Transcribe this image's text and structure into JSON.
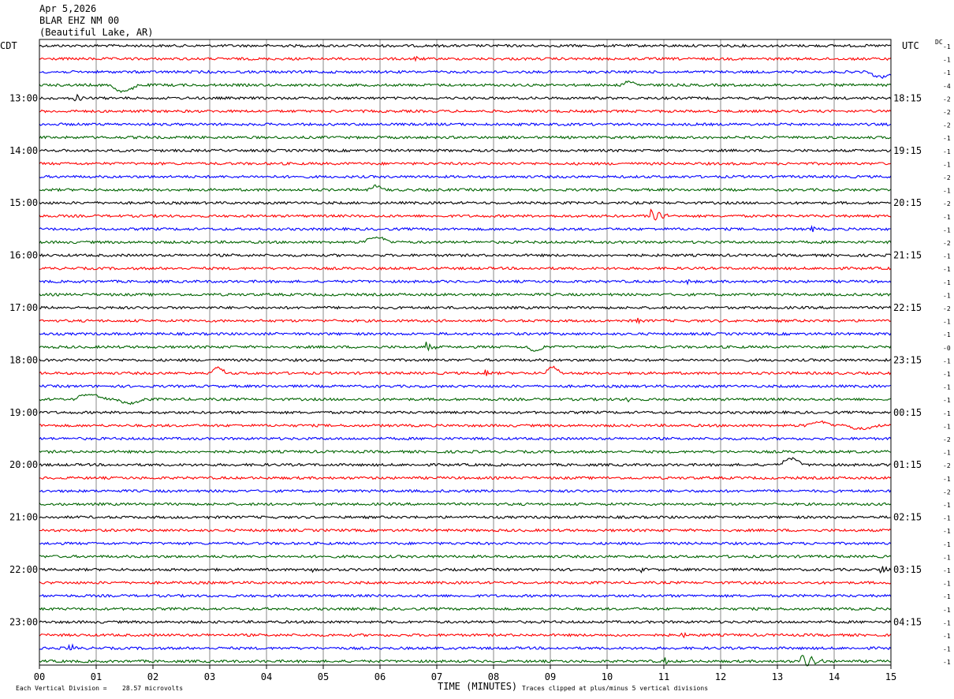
{
  "header": {
    "date": "Apr 5,2026",
    "station": "BLAR EHZ NM 00",
    "location": "(Beautiful Lake, AR)"
  },
  "chart_data": {
    "type": "line",
    "title": "BLAR EHZ NM 00",
    "subtitle": "(Beautiful Lake, AR)",
    "date": "Apr 5,2026",
    "left_zone_label": "CDT",
    "right_zone_label": "UTC",
    "dc_label": "DC",
    "xlabel": "TIME (MINUTES)",
    "x_ticks": [
      "00",
      "01",
      "02",
      "03",
      "04",
      "05",
      "06",
      "07",
      "08",
      "09",
      "10",
      "11",
      "12",
      "13",
      "14",
      "15"
    ],
    "xlim": [
      0,
      15
    ],
    "grid": true,
    "trace_colors": [
      "#000000",
      "#ff0000",
      "#0000ff",
      "#006400"
    ],
    "trace_count": 48,
    "minutes_per_trace": 15,
    "left_hour_labels": [
      {
        "row": 4,
        "label": "13:00"
      },
      {
        "row": 8,
        "label": "14:00"
      },
      {
        "row": 12,
        "label": "15:00"
      },
      {
        "row": 16,
        "label": "16:00"
      },
      {
        "row": 20,
        "label": "17:00"
      },
      {
        "row": 24,
        "label": "18:00"
      },
      {
        "row": 28,
        "label": "19:00"
      },
      {
        "row": 32,
        "label": "20:00"
      },
      {
        "row": 36,
        "label": "21:00"
      },
      {
        "row": 40,
        "label": "22:00"
      },
      {
        "row": 44,
        "label": "23:00"
      }
    ],
    "right_hour_labels": [
      {
        "row": 4,
        "label": "18:15"
      },
      {
        "row": 8,
        "label": "19:15"
      },
      {
        "row": 12,
        "label": "20:15"
      },
      {
        "row": 16,
        "label": "21:15"
      },
      {
        "row": 20,
        "label": "22:15"
      },
      {
        "row": 24,
        "label": "23:15"
      },
      {
        "row": 28,
        "label": "00:15"
      },
      {
        "row": 32,
        "label": "01:15"
      },
      {
        "row": 36,
        "label": "02:15"
      },
      {
        "row": 40,
        "label": "03:15"
      },
      {
        "row": 44,
        "label": "04:15"
      }
    ],
    "dc_offsets": [
      "-1",
      "-1",
      "-1",
      "-4",
      "-2",
      "-2",
      "-2",
      "-1",
      "-1",
      "-1",
      "-2",
      "-1",
      "-2",
      "-1",
      "-1",
      "-2",
      "-1",
      "-1",
      "-1",
      "-1",
      "-2",
      "-1",
      "-1",
      "-0",
      "-1",
      "-1",
      "-1",
      "-1",
      "-1",
      "-1",
      "-2",
      "-1",
      "-2",
      "-1",
      "-2",
      "-1",
      "-1",
      "-1",
      "-1",
      "-1",
      "-1",
      "-1",
      "-1",
      "-1",
      "-1",
      "-1",
      "-1",
      "-1"
    ],
    "events": [
      {
        "row": 1,
        "minute": 6.6,
        "amp": 4,
        "dur": 0.1
      },
      {
        "row": 2,
        "minute": 14.6,
        "amp": -8,
        "dur": 0.5,
        "step": true
      },
      {
        "row": 3,
        "minute": 1.25,
        "amp": -10,
        "dur": 0.5,
        "step": true
      },
      {
        "row": 3,
        "minute": 10.25,
        "amp": 5,
        "dur": 0.3,
        "step": true
      },
      {
        "row": 4,
        "minute": 0.6,
        "amp": -5,
        "dur": 0.3
      },
      {
        "row": 11,
        "minute": 5.8,
        "amp": 6,
        "dur": 0.3,
        "step": true
      },
      {
        "row": 13,
        "minute": 10.75,
        "amp": 9,
        "dur": 0.4
      },
      {
        "row": 14,
        "minute": 13.6,
        "amp": 6,
        "dur": 0.1
      },
      {
        "row": 15,
        "minute": 5.7,
        "amp": 8,
        "dur": 0.5,
        "step": true
      },
      {
        "row": 18,
        "minute": 11.4,
        "amp": -3,
        "dur": 0.2
      },
      {
        "row": 21,
        "minute": 10.5,
        "amp": 5,
        "dur": 0.1
      },
      {
        "row": 23,
        "minute": 6.8,
        "amp": 8,
        "dur": 0.2
      },
      {
        "row": 23,
        "minute": 8.6,
        "amp": -7,
        "dur": 0.3,
        "step": true
      },
      {
        "row": 25,
        "minute": 3.0,
        "amp": 9,
        "dur": 0.3,
        "step": true
      },
      {
        "row": 25,
        "minute": 7.85,
        "amp": 6,
        "dur": 0.1
      },
      {
        "row": 25,
        "minute": 8.9,
        "amp": 10,
        "dur": 0.3,
        "step": true
      },
      {
        "row": 27,
        "minute": 0.6,
        "amp": 8,
        "dur": 0.6,
        "step": true
      },
      {
        "row": 27,
        "minute": 1.35,
        "amp": -6,
        "dur": 0.5,
        "step": true
      },
      {
        "row": 27,
        "minute": 10.3,
        "amp": 3,
        "dur": 0.3
      },
      {
        "row": 29,
        "minute": 13.5,
        "amp": 6,
        "dur": 0.5,
        "step": true
      },
      {
        "row": 29,
        "minute": 14.2,
        "amp": -5,
        "dur": 0.6,
        "step": true
      },
      {
        "row": 32,
        "minute": 13.05,
        "amp": 10,
        "dur": 0.4,
        "step": true
      },
      {
        "row": 36,
        "minute": 2.9,
        "amp": -3,
        "dur": 0.1
      },
      {
        "row": 40,
        "minute": 4.8,
        "amp": -4,
        "dur": 0.1
      },
      {
        "row": 40,
        "minute": 10.6,
        "amp": -4,
        "dur": 0.1
      },
      {
        "row": 40,
        "minute": 14.8,
        "amp": -5,
        "dur": 0.2
      },
      {
        "row": 45,
        "minute": 11.3,
        "amp": 4,
        "dur": 0.1
      },
      {
        "row": 46,
        "minute": 0.5,
        "amp": 5,
        "dur": 0.2
      },
      {
        "row": 47,
        "minute": 13.4,
        "amp": 8,
        "dur": 0.5
      },
      {
        "row": 47,
        "minute": 11.0,
        "amp": 4,
        "dur": 0.2
      }
    ],
    "footer": {
      "division_label": "Each Vertical Division =",
      "division_value": "28.57 microvolts",
      "clip_note": "Traces clipped at plus/minus 5 vertical divisions"
    }
  }
}
